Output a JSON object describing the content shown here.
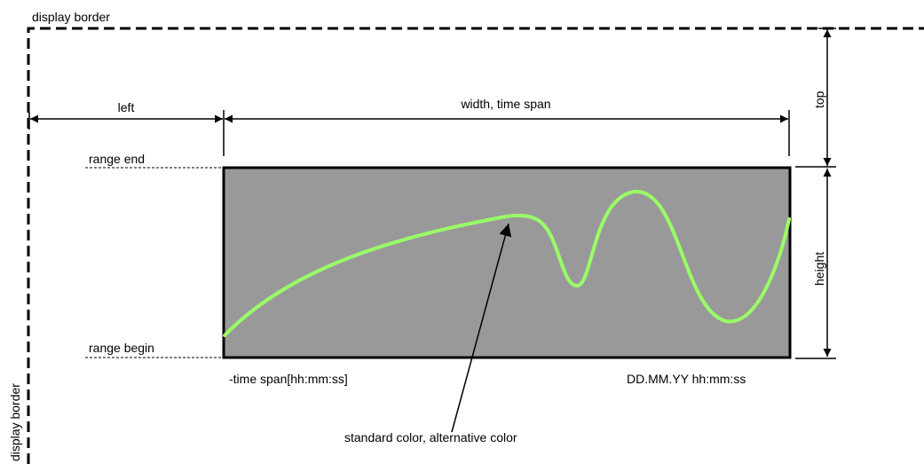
{
  "labels": {
    "display_border_top": "display border",
    "display_border_left": "display border",
    "left": "left",
    "width_time_span": "width, time span",
    "top": "top",
    "height": "height",
    "range_end": "range end",
    "range_begin": "range begin",
    "time_span_start": "-time span[hh:mm:ss]",
    "timestamp_end": "DD.MM.YY hh:mm:ss",
    "curve_color": "standard color, alternative color"
  },
  "colors": {
    "plot_fill": "#999999",
    "curve": "#99ff66",
    "lines": "#000000",
    "background": "#ffffff"
  },
  "icons": {
    "dimension_arrow": "double-headed-arrow",
    "pointer": "arrow-icon"
  }
}
